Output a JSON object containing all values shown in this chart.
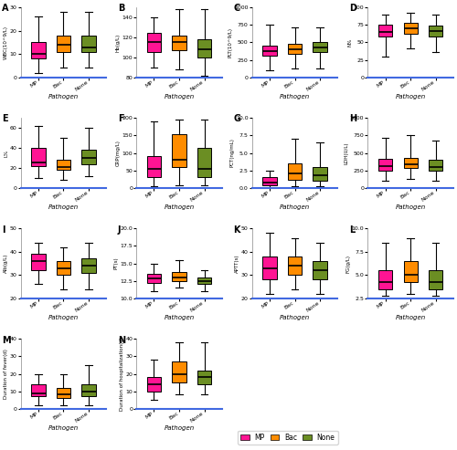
{
  "colors": {
    "MP": "#FF1493",
    "Bac": "#FF8C00",
    "None": "#6B8E23"
  },
  "categories": [
    "MP",
    "Bac",
    "None"
  ],
  "xlabel": "Pathogen",
  "plots": {
    "A": {
      "ylabel": "WBC(10^9/L)",
      "ylim": [
        0,
        30
      ],
      "yticks": [
        0,
        10,
        20,
        30
      ],
      "boxes": {
        "MP": {
          "whislo": 2,
          "q1": 8,
          "med": 10,
          "q3": 15,
          "whishi": 26
        },
        "Bac": {
          "whislo": 4,
          "q1": 11,
          "med": 14,
          "q3": 18,
          "whishi": 28
        },
        "None": {
          "whislo": 4,
          "q1": 11,
          "med": 13,
          "q3": 18,
          "whishi": 28
        }
      }
    },
    "B": {
      "ylabel": "Hb(g/L)",
      "ylim": [
        80,
        150
      ],
      "yticks": [
        80,
        100,
        120,
        140
      ],
      "boxes": {
        "MP": {
          "whislo": 90,
          "q1": 105,
          "med": 115,
          "q3": 125,
          "whishi": 140
        },
        "Bac": {
          "whislo": 88,
          "q1": 107,
          "med": 115,
          "q3": 122,
          "whishi": 148
        },
        "None": {
          "whislo": 82,
          "q1": 100,
          "med": 108,
          "q3": 118,
          "whishi": 148
        }
      }
    },
    "C": {
      "ylabel": "PLT(10^9/L)",
      "ylim": [
        0,
        1000
      ],
      "yticks": [
        0,
        250,
        500,
        750,
        1000
      ],
      "boxes": {
        "MP": {
          "whislo": 100,
          "q1": 310,
          "med": 380,
          "q3": 450,
          "whishi": 750
        },
        "Bac": {
          "whislo": 130,
          "q1": 330,
          "med": 400,
          "q3": 480,
          "whishi": 720
        },
        "None": {
          "whislo": 130,
          "q1": 360,
          "med": 430,
          "q3": 500,
          "whishi": 720
        }
      }
    },
    "D": {
      "ylabel": "N%",
      "ylim": [
        0,
        100
      ],
      "yticks": [
        0,
        25,
        50,
        75,
        100
      ],
      "boxes": {
        "MP": {
          "whislo": 30,
          "q1": 58,
          "med": 65,
          "q3": 75,
          "whishi": 90
        },
        "Bac": {
          "whislo": 42,
          "q1": 62,
          "med": 70,
          "q3": 78,
          "whishi": 92
        },
        "None": {
          "whislo": 36,
          "q1": 58,
          "med": 66,
          "q3": 74,
          "whishi": 90
        }
      }
    },
    "E": {
      "ylabel": "L%",
      "ylim": [
        0,
        70
      ],
      "yticks": [
        0,
        20,
        40,
        60
      ],
      "boxes": {
        "MP": {
          "whislo": 10,
          "q1": 22,
          "med": 25,
          "q3": 40,
          "whishi": 62
        },
        "Bac": {
          "whislo": 8,
          "q1": 18,
          "med": 21,
          "q3": 28,
          "whishi": 50
        },
        "None": {
          "whislo": 12,
          "q1": 24,
          "med": 30,
          "q3": 38,
          "whishi": 60
        }
      }
    },
    "F": {
      "ylabel": "CRP(mg/L)",
      "ylim": [
        0,
        200
      ],
      "yticks": [
        0,
        50,
        100,
        150,
        200
      ],
      "boxes": {
        "MP": {
          "whislo": 5,
          "q1": 30,
          "med": 55,
          "q3": 90,
          "whishi": 190
        },
        "Bac": {
          "whislo": 8,
          "q1": 60,
          "med": 80,
          "q3": 155,
          "whishi": 195
        },
        "None": {
          "whislo": 8,
          "q1": 30,
          "med": 55,
          "q3": 115,
          "whishi": 195
        }
      }
    },
    "G": {
      "ylabel": "PCT(ng/mL)",
      "ylim": [
        0.0,
        10.0
      ],
      "yticks": [
        0.0,
        2.5,
        5.0,
        7.5,
        10.0
      ],
      "boxes": {
        "MP": {
          "whislo": 0.0,
          "q1": 0.3,
          "med": 0.7,
          "q3": 1.5,
          "whishi": 2.5
        },
        "Bac": {
          "whislo": 0.2,
          "q1": 1.2,
          "med": 2.0,
          "q3": 3.5,
          "whishi": 7.0
        },
        "None": {
          "whislo": 0.2,
          "q1": 1.0,
          "med": 1.8,
          "q3": 3.0,
          "whishi": 6.5
        }
      }
    },
    "H": {
      "ylabel": "LDH(U/L)",
      "ylim": [
        0,
        1000
      ],
      "yticks": [
        0,
        250,
        500,
        750,
        1000
      ],
      "boxes": {
        "MP": {
          "whislo": 100,
          "q1": 250,
          "med": 310,
          "q3": 420,
          "whishi": 720
        },
        "Bac": {
          "whislo": 130,
          "q1": 280,
          "med": 340,
          "q3": 430,
          "whishi": 750
        },
        "None": {
          "whislo": 100,
          "q1": 240,
          "med": 300,
          "q3": 400,
          "whishi": 680
        }
      }
    },
    "I": {
      "ylabel": "Alb(g/L)",
      "ylim": [
        20,
        50
      ],
      "yticks": [
        20,
        30,
        40,
        50
      ],
      "boxes": {
        "MP": {
          "whislo": 26,
          "q1": 32,
          "med": 36,
          "q3": 39,
          "whishi": 44
        },
        "Bac": {
          "whislo": 24,
          "q1": 30,
          "med": 33,
          "q3": 36,
          "whishi": 42
        },
        "None": {
          "whislo": 24,
          "q1": 31,
          "med": 34,
          "q3": 37,
          "whishi": 44
        }
      }
    },
    "J": {
      "ylabel": "PT(s)",
      "ylim": [
        10.0,
        20.0
      ],
      "yticks": [
        10.0,
        12.5,
        15.0,
        17.5,
        20.0
      ],
      "boxes": {
        "MP": {
          "whislo": 11.0,
          "q1": 12.2,
          "med": 12.8,
          "q3": 13.5,
          "whishi": 15.0
        },
        "Bac": {
          "whislo": 11.5,
          "q1": 12.5,
          "med": 13.0,
          "q3": 13.8,
          "whishi": 15.5
        },
        "None": {
          "whislo": 11.0,
          "q1": 12.0,
          "med": 12.5,
          "q3": 13.0,
          "whishi": 14.0
        }
      }
    },
    "K": {
      "ylabel": "APTT(s)",
      "ylim": [
        20,
        50
      ],
      "yticks": [
        20,
        30,
        40,
        50
      ],
      "boxes": {
        "MP": {
          "whislo": 22,
          "q1": 28,
          "med": 33,
          "q3": 38,
          "whishi": 48
        },
        "Bac": {
          "whislo": 24,
          "q1": 30,
          "med": 34,
          "q3": 38,
          "whishi": 46
        },
        "None": {
          "whislo": 22,
          "q1": 28,
          "med": 32,
          "q3": 36,
          "whishi": 44
        }
      }
    },
    "L": {
      "ylabel": "FG(g/L)",
      "ylim": [
        2.5,
        10.0
      ],
      "yticks": [
        2.5,
        5.0,
        7.5,
        10.0
      ],
      "boxes": {
        "MP": {
          "whislo": 2.8,
          "q1": 3.5,
          "med": 4.2,
          "q3": 5.5,
          "whishi": 8.5
        },
        "Bac": {
          "whislo": 3.0,
          "q1": 4.2,
          "med": 5.0,
          "q3": 6.5,
          "whishi": 9.0
        },
        "None": {
          "whislo": 2.8,
          "q1": 3.5,
          "med": 4.2,
          "q3": 5.5,
          "whishi": 8.5
        }
      }
    },
    "M": {
      "ylabel": "Duration of fever(d)",
      "ylim": [
        0,
        40
      ],
      "yticks": [
        0,
        10,
        20,
        30,
        40
      ],
      "boxes": {
        "MP": {
          "whislo": 2,
          "q1": 7,
          "med": 9,
          "q3": 14,
          "whishi": 20
        },
        "Bac": {
          "whislo": 2,
          "q1": 6,
          "med": 8,
          "q3": 12,
          "whishi": 20
        },
        "None": {
          "whislo": 2,
          "q1": 7,
          "med": 10,
          "q3": 14,
          "whishi": 25
        }
      }
    },
    "N": {
      "ylabel": "Duration of hospitalization(d)",
      "ylim": [
        0,
        40
      ],
      "yticks": [
        0,
        10,
        20,
        30,
        40
      ],
      "boxes": {
        "MP": {
          "whislo": 5,
          "q1": 10,
          "med": 14,
          "q3": 18,
          "whishi": 28
        },
        "Bac": {
          "whislo": 8,
          "q1": 15,
          "med": 20,
          "q3": 27,
          "whishi": 38
        },
        "None": {
          "whislo": 8,
          "q1": 14,
          "med": 18,
          "q3": 22,
          "whishi": 38
        }
      }
    }
  },
  "panel_order_row1": [
    "A",
    "B",
    "C",
    "D"
  ],
  "panel_order_row2": [
    "E",
    "F",
    "G",
    "H"
  ],
  "panel_order_row3": [
    "I",
    "J",
    "K",
    "L"
  ],
  "panel_order_row4": [
    "M",
    "N"
  ]
}
